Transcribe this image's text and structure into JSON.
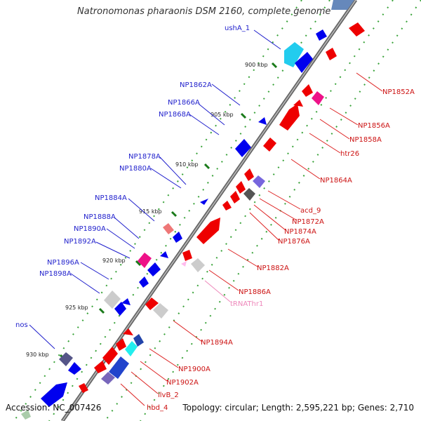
{
  "title": "Natronomonas pharaonis DSM 2160, complete genome",
  "footer": {
    "accession": "Accession: NC_007426",
    "summary": "Topology: circular; Length: 2,595,221 bp; Genes: 2,710"
  },
  "colors": {
    "blue_label": "#1f1fcc",
    "red_label": "#cc1111",
    "pink_label": "#ee88bb",
    "forward_gene": "#0000ee",
    "reverse_gene": "#ee0000",
    "backbone": "#777777",
    "tick": "#3aa33a"
  },
  "ticks": [
    "900 kbp",
    "905 kbp",
    "910 kbp",
    "915 kbp",
    "920 kbp",
    "925 kbp",
    "930 kbp"
  ],
  "labels_left": [
    "ushA_1",
    "NP1862A",
    "NP1866A",
    "NP1868A",
    "NP1878A",
    "NP1880A",
    "NP1884A",
    "NP1888A",
    "NP1890A",
    "NP1892A",
    "NP1896A",
    "NP1898A",
    "nos"
  ],
  "labels_right": [
    "NP1852A",
    "NP1856A",
    "NP1858A",
    "htr26",
    "NP1864A",
    "acd_9",
    "NP1872A",
    "NP1874A",
    "NP1876A",
    "NP1882A",
    "NP1886A",
    "tRNAThr1",
    "NP1894A",
    "NP1900A",
    "NP1902A",
    "ilvB_2",
    "hbd_4"
  ]
}
